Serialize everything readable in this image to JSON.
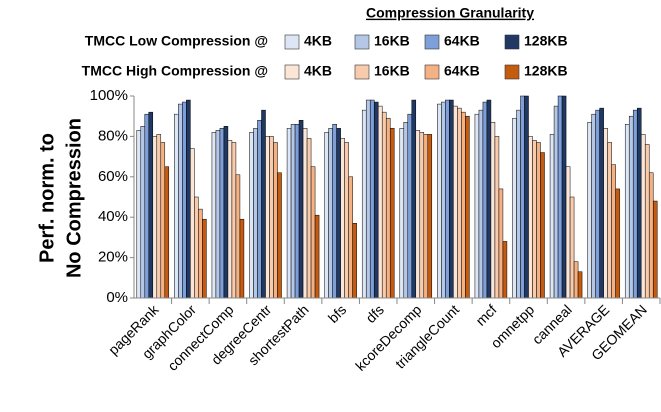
{
  "chart_data": {
    "type": "bar",
    "legend_title": "Compression Granularity",
    "legend_groups": [
      "TMCC Low Compression @",
      "TMCC High Compression @"
    ],
    "y_label": [
      "Perf. norm. to",
      "No Compression"
    ],
    "categories": [
      "pageRank",
      "graphColor",
      "connectComp",
      "degreeCentr",
      "shortestPath",
      "bfs",
      "dfs",
      "kcoreDecomp",
      "triangleCount",
      "mcf",
      "omnetpp",
      "canneal",
      "AVERAGE",
      "GEOMEAN"
    ],
    "series": [
      {
        "name": "4KB",
        "group": 0,
        "color": "#dde6f4",
        "values": [
          83,
          91,
          82,
          82,
          84,
          82,
          93,
          84,
          96,
          91,
          89,
          81,
          87,
          86
        ]
      },
      {
        "name": "16KB",
        "group": 0,
        "color": "#b4c7e7",
        "values": [
          85,
          96,
          83,
          84,
          86,
          84,
          98,
          87,
          97,
          93,
          93,
          95,
          91,
          90
        ]
      },
      {
        "name": "64KB",
        "group": 0,
        "color": "#7f9fd8",
        "values": [
          91,
          97,
          84,
          88,
          86,
          86,
          98,
          91,
          98,
          97,
          100,
          100,
          93,
          93
        ]
      },
      {
        "name": "128KB",
        "group": 0,
        "color": "#203864",
        "values": [
          92,
          98,
          85,
          93,
          88,
          84,
          97,
          98,
          98,
          98,
          100,
          100,
          94,
          94
        ]
      },
      {
        "name": "4KB",
        "group": 1,
        "color": "#fbe5d6",
        "values": [
          80,
          74,
          78,
          80,
          84,
          79,
          95,
          83,
          95,
          87,
          80,
          65,
          84,
          81
        ]
      },
      {
        "name": "16KB",
        "group": 1,
        "color": "#f8cbad",
        "values": [
          81,
          50,
          77,
          80,
          79,
          77,
          92,
          82,
          94,
          80,
          78,
          50,
          77,
          76
        ]
      },
      {
        "name": "64KB",
        "group": 1,
        "color": "#f4b183",
        "values": [
          77,
          44,
          61,
          77,
          65,
          60,
          89,
          81,
          92,
          54,
          77,
          18,
          66,
          62
        ]
      },
      {
        "name": "128KB",
        "group": 1,
        "color": "#c55a11",
        "values": [
          65,
          39,
          39,
          62,
          41,
          37,
          84,
          81,
          90,
          28,
          72,
          13,
          54,
          48
        ]
      }
    ],
    "ylim": [
      0,
      100
    ],
    "yticks": [
      {
        "value": 0,
        "label": "0%"
      },
      {
        "value": 20,
        "label": "20%"
      },
      {
        "value": 40,
        "label": "40%"
      },
      {
        "value": 60,
        "label": "60%"
      },
      {
        "value": 80,
        "label": "80%"
      },
      {
        "value": 100,
        "label": "100%"
      }
    ]
  }
}
